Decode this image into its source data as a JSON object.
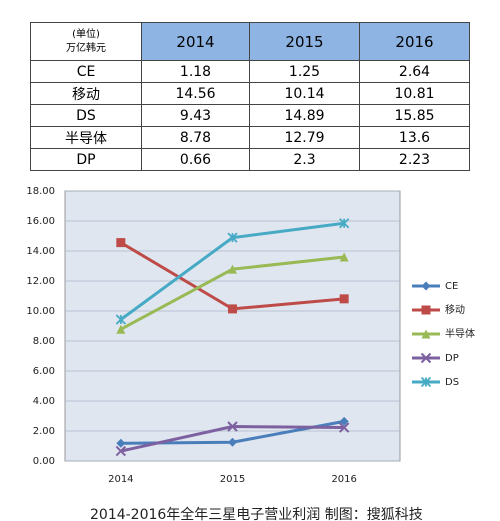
{
  "table": {
    "unit_label": [
      "(单位)",
      "万亿韩元"
    ],
    "columns": [
      "2014",
      "2015",
      "2016"
    ],
    "rows": [
      [
        "CE",
        "1.18",
        "1.25",
        "2.64"
      ],
      [
        "移动",
        "14.56",
        "10.14",
        "10.81"
      ],
      [
        "DS",
        "9.43",
        "14.89",
        "15.85"
      ],
      [
        "半导体",
        "8.78",
        "12.79",
        "13.6"
      ],
      [
        "DP",
        "0.66",
        "2.3",
        "2.23"
      ]
    ]
  },
  "chart_data": {
    "type": "line",
    "caption": "2014-2016年全年三星电子营业利润 制图：搜狐科技",
    "categories": [
      "2014",
      "2015",
      "2016"
    ],
    "series": [
      {
        "name": "CE",
        "color": "#4a7ebb",
        "marker": "diamond",
        "values": [
          1.18,
          1.25,
          2.64
        ]
      },
      {
        "name": "移动",
        "color": "#be4b48",
        "marker": "square",
        "values": [
          14.56,
          10.14,
          10.81
        ]
      },
      {
        "name": "半导体",
        "color": "#98b954",
        "marker": "triangle",
        "values": [
          8.78,
          12.79,
          13.6
        ]
      },
      {
        "name": "DP",
        "color": "#7d60a0",
        "marker": "x",
        "values": [
          0.66,
          2.3,
          2.23
        ]
      },
      {
        "name": "DS",
        "color": "#46aac5",
        "marker": "star",
        "values": [
          9.43,
          14.89,
          15.85
        ]
      }
    ],
    "ylim": [
      0,
      18
    ],
    "yticks": [
      {
        "value": 0,
        "label": "0.00"
      },
      {
        "value": 2,
        "label": "2.00"
      },
      {
        "value": 4,
        "label": "4.00"
      },
      {
        "value": 6,
        "label": "6.00"
      },
      {
        "value": 8,
        "label": "8.00"
      },
      {
        "value": 10,
        "label": "10.00"
      },
      {
        "value": 12,
        "label": "12.00"
      },
      {
        "value": 14,
        "label": "14.00"
      },
      {
        "value": 16,
        "label": "16.00"
      },
      {
        "value": 18,
        "label": "18.00"
      }
    ],
    "grid": true
  }
}
